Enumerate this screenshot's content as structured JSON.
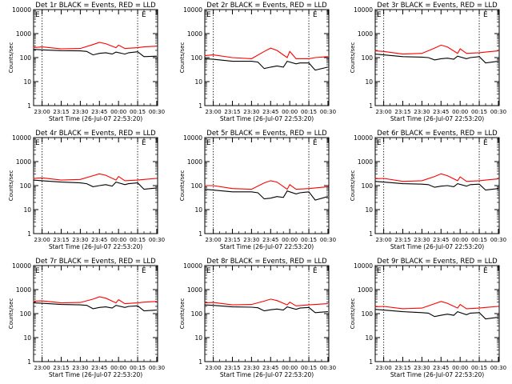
{
  "figure": {
    "colors": {
      "events": "#000000",
      "lld": "#ff0000",
      "axes": "#000000",
      "background": "#ffffff"
    }
  },
  "chart_data": [
    {
      "type": "line",
      "title": "Det 1r BLACK = Events, RED = LLD",
      "xlabel": "Start Time (26-Jul-07 22:53:20)",
      "ylabel": "Counts/sec",
      "xtick_labels": [
        "23:00",
        "23:15",
        "23:30",
        "23:45",
        "00:00",
        "00:15",
        "00:30"
      ],
      "ytick_labels": [
        "1",
        "10",
        "100",
        "1000",
        "10000"
      ],
      "ylog": true,
      "ylim": [
        1,
        10000
      ],
      "vlines": [
        "23:00",
        "00:15"
      ],
      "markers": [
        {
          "label": "E",
          "position": "top-left"
        },
        {
          "label": "E",
          "position": "top-right"
        }
      ],
      "series": [
        {
          "name": "Events",
          "color": "#000000",
          "x": [
            "22:53",
            "23:00",
            "23:15",
            "23:30",
            "23:35",
            "23:40",
            "23:45",
            "23:50",
            "23:55",
            "23:58",
            "24:05",
            "24:08",
            "24:15",
            "24:20",
            "24:30"
          ],
          "values": [
            220,
            210,
            195,
            190,
            180,
            130,
            150,
            160,
            140,
            170,
            140,
            160,
            175,
            110,
            115
          ]
        },
        {
          "name": "LLD",
          "color": "#ff0000",
          "x": [
            "22:53",
            "23:00",
            "23:15",
            "23:30",
            "23:40",
            "23:45",
            "23:50",
            "23:58",
            "24:00",
            "24:05",
            "24:15",
            "24:20",
            "24:30"
          ],
          "values": [
            260,
            280,
            230,
            240,
            350,
            430,
            380,
            260,
            330,
            240,
            260,
            280,
            300
          ]
        }
      ]
    },
    {
      "type": "line",
      "title": "Det 2r BLACK = Events, RED = LLD",
      "xlabel": "Start Time (26-Jul-07 22:53:20)",
      "ylabel": "Counts/sec",
      "xtick_labels": [
        "23:00",
        "23:15",
        "23:30",
        "23:45",
        "00:00",
        "00:15",
        "00:30"
      ],
      "ytick_labels": [
        "1",
        "10",
        "100",
        "1000",
        "10000"
      ],
      "ylog": true,
      "ylim": [
        1,
        10000
      ],
      "vlines": [
        "23:00",
        "00:15"
      ],
      "markers": [
        {
          "label": "E",
          "position": "top-left"
        },
        {
          "label": "E",
          "position": "top-right"
        }
      ],
      "series": [
        {
          "name": "Events",
          "color": "#000000",
          "x": [
            "22:53",
            "23:00",
            "23:15",
            "23:30",
            "23:35",
            "23:40",
            "23:45",
            "23:50",
            "23:55",
            "23:58",
            "24:05",
            "24:08",
            "24:15",
            "24:20",
            "24:30"
          ],
          "values": [
            90,
            85,
            70,
            70,
            65,
            35,
            40,
            45,
            40,
            70,
            55,
            60,
            60,
            30,
            40
          ]
        },
        {
          "name": "LLD",
          "color": "#ff0000",
          "x": [
            "22:53",
            "23:00",
            "23:15",
            "23:30",
            "23:40",
            "23:45",
            "23:50",
            "23:58",
            "24:00",
            "24:05",
            "24:15",
            "24:20",
            "24:30"
          ],
          "values": [
            120,
            130,
            100,
            90,
            180,
            250,
            200,
            100,
            180,
            90,
            90,
            100,
            110
          ]
        }
      ]
    },
    {
      "type": "line",
      "title": "Det 3r BLACK = Events, RED = LLD",
      "xlabel": "Start Time (26-Jul-07 22:53:20)",
      "ylabel": "Counts/sec",
      "xtick_labels": [
        "23:00",
        "23:15",
        "23:30",
        "23:45",
        "00:00",
        "00:15",
        "00:30"
      ],
      "ytick_labels": [
        "1",
        "10",
        "100",
        "1000",
        "10000"
      ],
      "ylog": true,
      "ylim": [
        1,
        10000
      ],
      "vlines": [
        "23:00",
        "00:15"
      ],
      "markers": [
        {
          "label": "E",
          "position": "top-left"
        },
        {
          "label": "E",
          "position": "top-right"
        }
      ],
      "series": [
        {
          "name": "Events",
          "color": "#000000",
          "x": [
            "22:53",
            "23:00",
            "23:15",
            "23:30",
            "23:35",
            "23:40",
            "23:45",
            "23:50",
            "23:55",
            "23:58",
            "24:05",
            "24:08",
            "24:15",
            "24:20",
            "24:30"
          ],
          "values": [
            140,
            130,
            110,
            105,
            100,
            80,
            90,
            95,
            85,
            115,
            90,
            100,
            110,
            60,
            70
          ]
        },
        {
          "name": "LLD",
          "color": "#ff0000",
          "x": [
            "22:53",
            "23:00",
            "23:15",
            "23:30",
            "23:40",
            "23:45",
            "23:50",
            "23:58",
            "24:00",
            "24:05",
            "24:15",
            "24:20",
            "24:30"
          ],
          "values": [
            190,
            180,
            140,
            150,
            250,
            330,
            280,
            150,
            230,
            150,
            160,
            170,
            190
          ]
        }
      ]
    },
    {
      "type": "line",
      "title": "Det 4r BLACK = Events, RED = LLD",
      "xlabel": "Start Time (26-Jul-07 22:53:20)",
      "ylabel": "Counts/sec",
      "xtick_labels": [
        "23:00",
        "23:15",
        "23:30",
        "23:45",
        "00:00",
        "00:15",
        "00:30"
      ],
      "ytick_labels": [
        "1",
        "10",
        "100",
        "1000",
        "10000"
      ],
      "ylog": true,
      "ylim": [
        1,
        10000
      ],
      "vlines": [
        "23:00",
        "00:15"
      ],
      "markers": [
        {
          "label": "E",
          "position": "top-left"
        },
        {
          "label": "E",
          "position": "top-right"
        }
      ],
      "series": [
        {
          "name": "Events",
          "color": "#000000",
          "x": [
            "22:53",
            "23:00",
            "23:15",
            "23:30",
            "23:35",
            "23:40",
            "23:45",
            "23:50",
            "23:55",
            "23:58",
            "24:05",
            "24:08",
            "24:15",
            "24:20",
            "24:30"
          ],
          "values": [
            170,
            160,
            140,
            130,
            120,
            90,
            100,
            110,
            95,
            140,
            110,
            120,
            130,
            70,
            80
          ]
        },
        {
          "name": "LLD",
          "color": "#ff0000",
          "x": [
            "22:53",
            "23:00",
            "23:15",
            "23:30",
            "23:40",
            "23:45",
            "23:50",
            "23:58",
            "24:00",
            "24:05",
            "24:15",
            "24:20",
            "24:30"
          ],
          "values": [
            200,
            210,
            170,
            180,
            260,
            310,
            270,
            170,
            240,
            160,
            170,
            180,
            200
          ]
        }
      ]
    },
    {
      "type": "line",
      "title": "Det 5r BLACK = Events, RED = LLD",
      "xlabel": "Start Time (26-Jul-07 22:53:20)",
      "ylabel": "Counts/sec",
      "xtick_labels": [
        "23:00",
        "23:15",
        "23:30",
        "23:45",
        "00:00",
        "00:15",
        "00:30"
      ],
      "ytick_labels": [
        "1",
        "10",
        "100",
        "1000",
        "10000"
      ],
      "ylog": true,
      "ylim": [
        1,
        10000
      ],
      "vlines": [
        "23:00",
        "00:15"
      ],
      "markers": [
        {
          "label": "E",
          "position": "top-left"
        },
        {
          "label": "E",
          "position": "top-right"
        }
      ],
      "series": [
        {
          "name": "Events",
          "color": "#000000",
          "x": [
            "22:53",
            "23:00",
            "23:15",
            "23:30",
            "23:35",
            "23:40",
            "23:45",
            "23:50",
            "23:55",
            "23:58",
            "24:05",
            "24:08",
            "24:15",
            "24:20",
            "24:30"
          ],
          "values": [
            70,
            65,
            55,
            55,
            50,
            28,
            30,
            35,
            32,
            60,
            45,
            50,
            55,
            25,
            35
          ]
        },
        {
          "name": "LLD",
          "color": "#ff0000",
          "x": [
            "22:53",
            "23:00",
            "23:15",
            "23:30",
            "23:40",
            "23:45",
            "23:50",
            "23:58",
            "24:00",
            "24:05",
            "24:15",
            "24:20",
            "24:30"
          ],
          "values": [
            100,
            100,
            75,
            70,
            130,
            160,
            140,
            70,
            110,
            70,
            75,
            80,
            90
          ]
        }
      ]
    },
    {
      "type": "line",
      "title": "Det 6r BLACK = Events, RED = LLD",
      "xlabel": "Start Time (26-Jul-07 22:53:20)",
      "ylabel": "Counts/sec",
      "xtick_labels": [
        "23:00",
        "23:15",
        "23:30",
        "23:45",
        "00:00",
        "00:15",
        "00:30"
      ],
      "ytick_labels": [
        "1",
        "10",
        "100",
        "1000",
        "10000"
      ],
      "ylog": true,
      "ylim": [
        1,
        10000
      ],
      "vlines": [
        "23:00",
        "00:15"
      ],
      "markers": [
        {
          "label": "E",
          "position": "top-left"
        },
        {
          "label": "E",
          "position": "top-right"
        }
      ],
      "series": [
        {
          "name": "Events",
          "color": "#000000",
          "x": [
            "22:53",
            "23:00",
            "23:15",
            "23:30",
            "23:35",
            "23:40",
            "23:45",
            "23:50",
            "23:55",
            "23:58",
            "24:05",
            "24:08",
            "24:15",
            "24:20",
            "24:30"
          ],
          "values": [
            150,
            140,
            120,
            115,
            110,
            85,
            95,
            100,
            90,
            120,
            95,
            110,
            115,
            65,
            75
          ]
        },
        {
          "name": "LLD",
          "color": "#ff0000",
          "x": [
            "22:53",
            "23:00",
            "23:15",
            "23:30",
            "23:40",
            "23:45",
            "23:50",
            "23:58",
            "24:00",
            "24:05",
            "24:15",
            "24:20",
            "24:30"
          ],
          "values": [
            190,
            200,
            150,
            160,
            240,
            310,
            260,
            160,
            230,
            150,
            160,
            170,
            190
          ]
        }
      ]
    },
    {
      "type": "line",
      "title": "Det 7r BLACK = Events, RED = LLD",
      "xlabel": "Start Time (26-Jul-07 22:53:20)",
      "ylabel": "Counts/sec",
      "xtick_labels": [
        "23:00",
        "23:15",
        "23:30",
        "23:45",
        "00:00",
        "00:15",
        "00:30"
      ],
      "ytick_labels": [
        "1",
        "10",
        "100",
        "1000",
        "10000"
      ],
      "ylog": true,
      "ylim": [
        1,
        10000
      ],
      "vlines": [
        "23:00",
        "00:15"
      ],
      "markers": [
        {
          "label": "E",
          "position": "top-left"
        },
        {
          "label": "E",
          "position": "top-right"
        }
      ],
      "series": [
        {
          "name": "Events",
          "color": "#000000",
          "x": [
            "22:53",
            "23:00",
            "23:15",
            "23:30",
            "23:35",
            "23:40",
            "23:45",
            "23:50",
            "23:55",
            "23:58",
            "24:05",
            "24:08",
            "24:15",
            "24:20",
            "24:30"
          ],
          "values": [
            280,
            270,
            240,
            230,
            220,
            160,
            180,
            190,
            170,
            220,
            180,
            200,
            210,
            130,
            140
          ]
        },
        {
          "name": "LLD",
          "color": "#ff0000",
          "x": [
            "22:53",
            "23:00",
            "23:15",
            "23:30",
            "23:40",
            "23:45",
            "23:50",
            "23:58",
            "24:00",
            "24:05",
            "24:15",
            "24:20",
            "24:30"
          ],
          "values": [
            330,
            340,
            280,
            290,
            400,
            500,
            440,
            280,
            380,
            260,
            280,
            300,
            320
          ]
        }
      ]
    },
    {
      "type": "line",
      "title": "Det 8r BLACK = Events, RED = LLD",
      "xlabel": "Start Time (26-Jul-07 22:53:20)",
      "ylabel": "Counts/sec",
      "xtick_labels": [
        "23:00",
        "23:15",
        "23:30",
        "23:45",
        "00:00",
        "00:15",
        "00:30"
      ],
      "ytick_labels": [
        "1",
        "10",
        "100",
        "1000",
        "10000"
      ],
      "ylog": true,
      "ylim": [
        1,
        10000
      ],
      "vlines": [
        "23:00",
        "00:15"
      ],
      "markers": [
        {
          "label": "E",
          "position": "top-left"
        },
        {
          "label": "E",
          "position": "top-right"
        }
      ],
      "series": [
        {
          "name": "Events",
          "color": "#000000",
          "x": [
            "22:53",
            "23:00",
            "23:15",
            "23:30",
            "23:35",
            "23:40",
            "23:45",
            "23:50",
            "23:55",
            "23:58",
            "24:05",
            "24:08",
            "24:15",
            "24:20",
            "24:30"
          ],
          "values": [
            230,
            220,
            190,
            185,
            175,
            130,
            145,
            155,
            140,
            190,
            150,
            170,
            180,
            110,
            120
          ]
        },
        {
          "name": "LLD",
          "color": "#ff0000",
          "x": [
            "22:53",
            "23:00",
            "23:15",
            "23:30",
            "23:40",
            "23:45",
            "23:50",
            "23:58",
            "24:00",
            "24:05",
            "24:15",
            "24:20",
            "24:30"
          ],
          "values": [
            280,
            290,
            230,
            240,
            330,
            400,
            350,
            230,
            300,
            210,
            230,
            240,
            260
          ]
        }
      ]
    },
    {
      "type": "line",
      "title": "Det 9r BLACK = Events, RED = LLD",
      "xlabel": "Start Time (26-Jul-07 22:53:20)",
      "ylabel": "Counts/sec",
      "xtick_labels": [
        "23:00",
        "23:15",
        "23:30",
        "23:45",
        "00:00",
        "00:15",
        "00:30"
      ],
      "ytick_labels": [
        "1",
        "10",
        "100",
        "1000",
        "10000"
      ],
      "ylog": true,
      "ylim": [
        1,
        10000
      ],
      "vlines": [
        "23:00",
        "00:15"
      ],
      "markers": [
        {
          "label": "E",
          "position": "top-left"
        },
        {
          "label": "E",
          "position": "top-right"
        }
      ],
      "series": [
        {
          "name": "Events",
          "color": "#000000",
          "x": [
            "22:53",
            "23:00",
            "23:15",
            "23:30",
            "23:35",
            "23:40",
            "23:45",
            "23:50",
            "23:55",
            "23:58",
            "24:05",
            "24:08",
            "24:15",
            "24:20",
            "24:30"
          ],
          "values": [
            150,
            140,
            120,
            110,
            105,
            75,
            85,
            95,
            85,
            120,
            90,
            105,
            110,
            60,
            70
          ]
        },
        {
          "name": "LLD",
          "color": "#ff0000",
          "x": [
            "22:53",
            "23:00",
            "23:15",
            "23:30",
            "23:40",
            "23:45",
            "23:50",
            "23:58",
            "24:00",
            "24:05",
            "24:15",
            "24:20",
            "24:30"
          ],
          "values": [
            190,
            200,
            160,
            170,
            260,
            320,
            270,
            170,
            240,
            160,
            170,
            180,
            200
          ]
        }
      ]
    }
  ]
}
